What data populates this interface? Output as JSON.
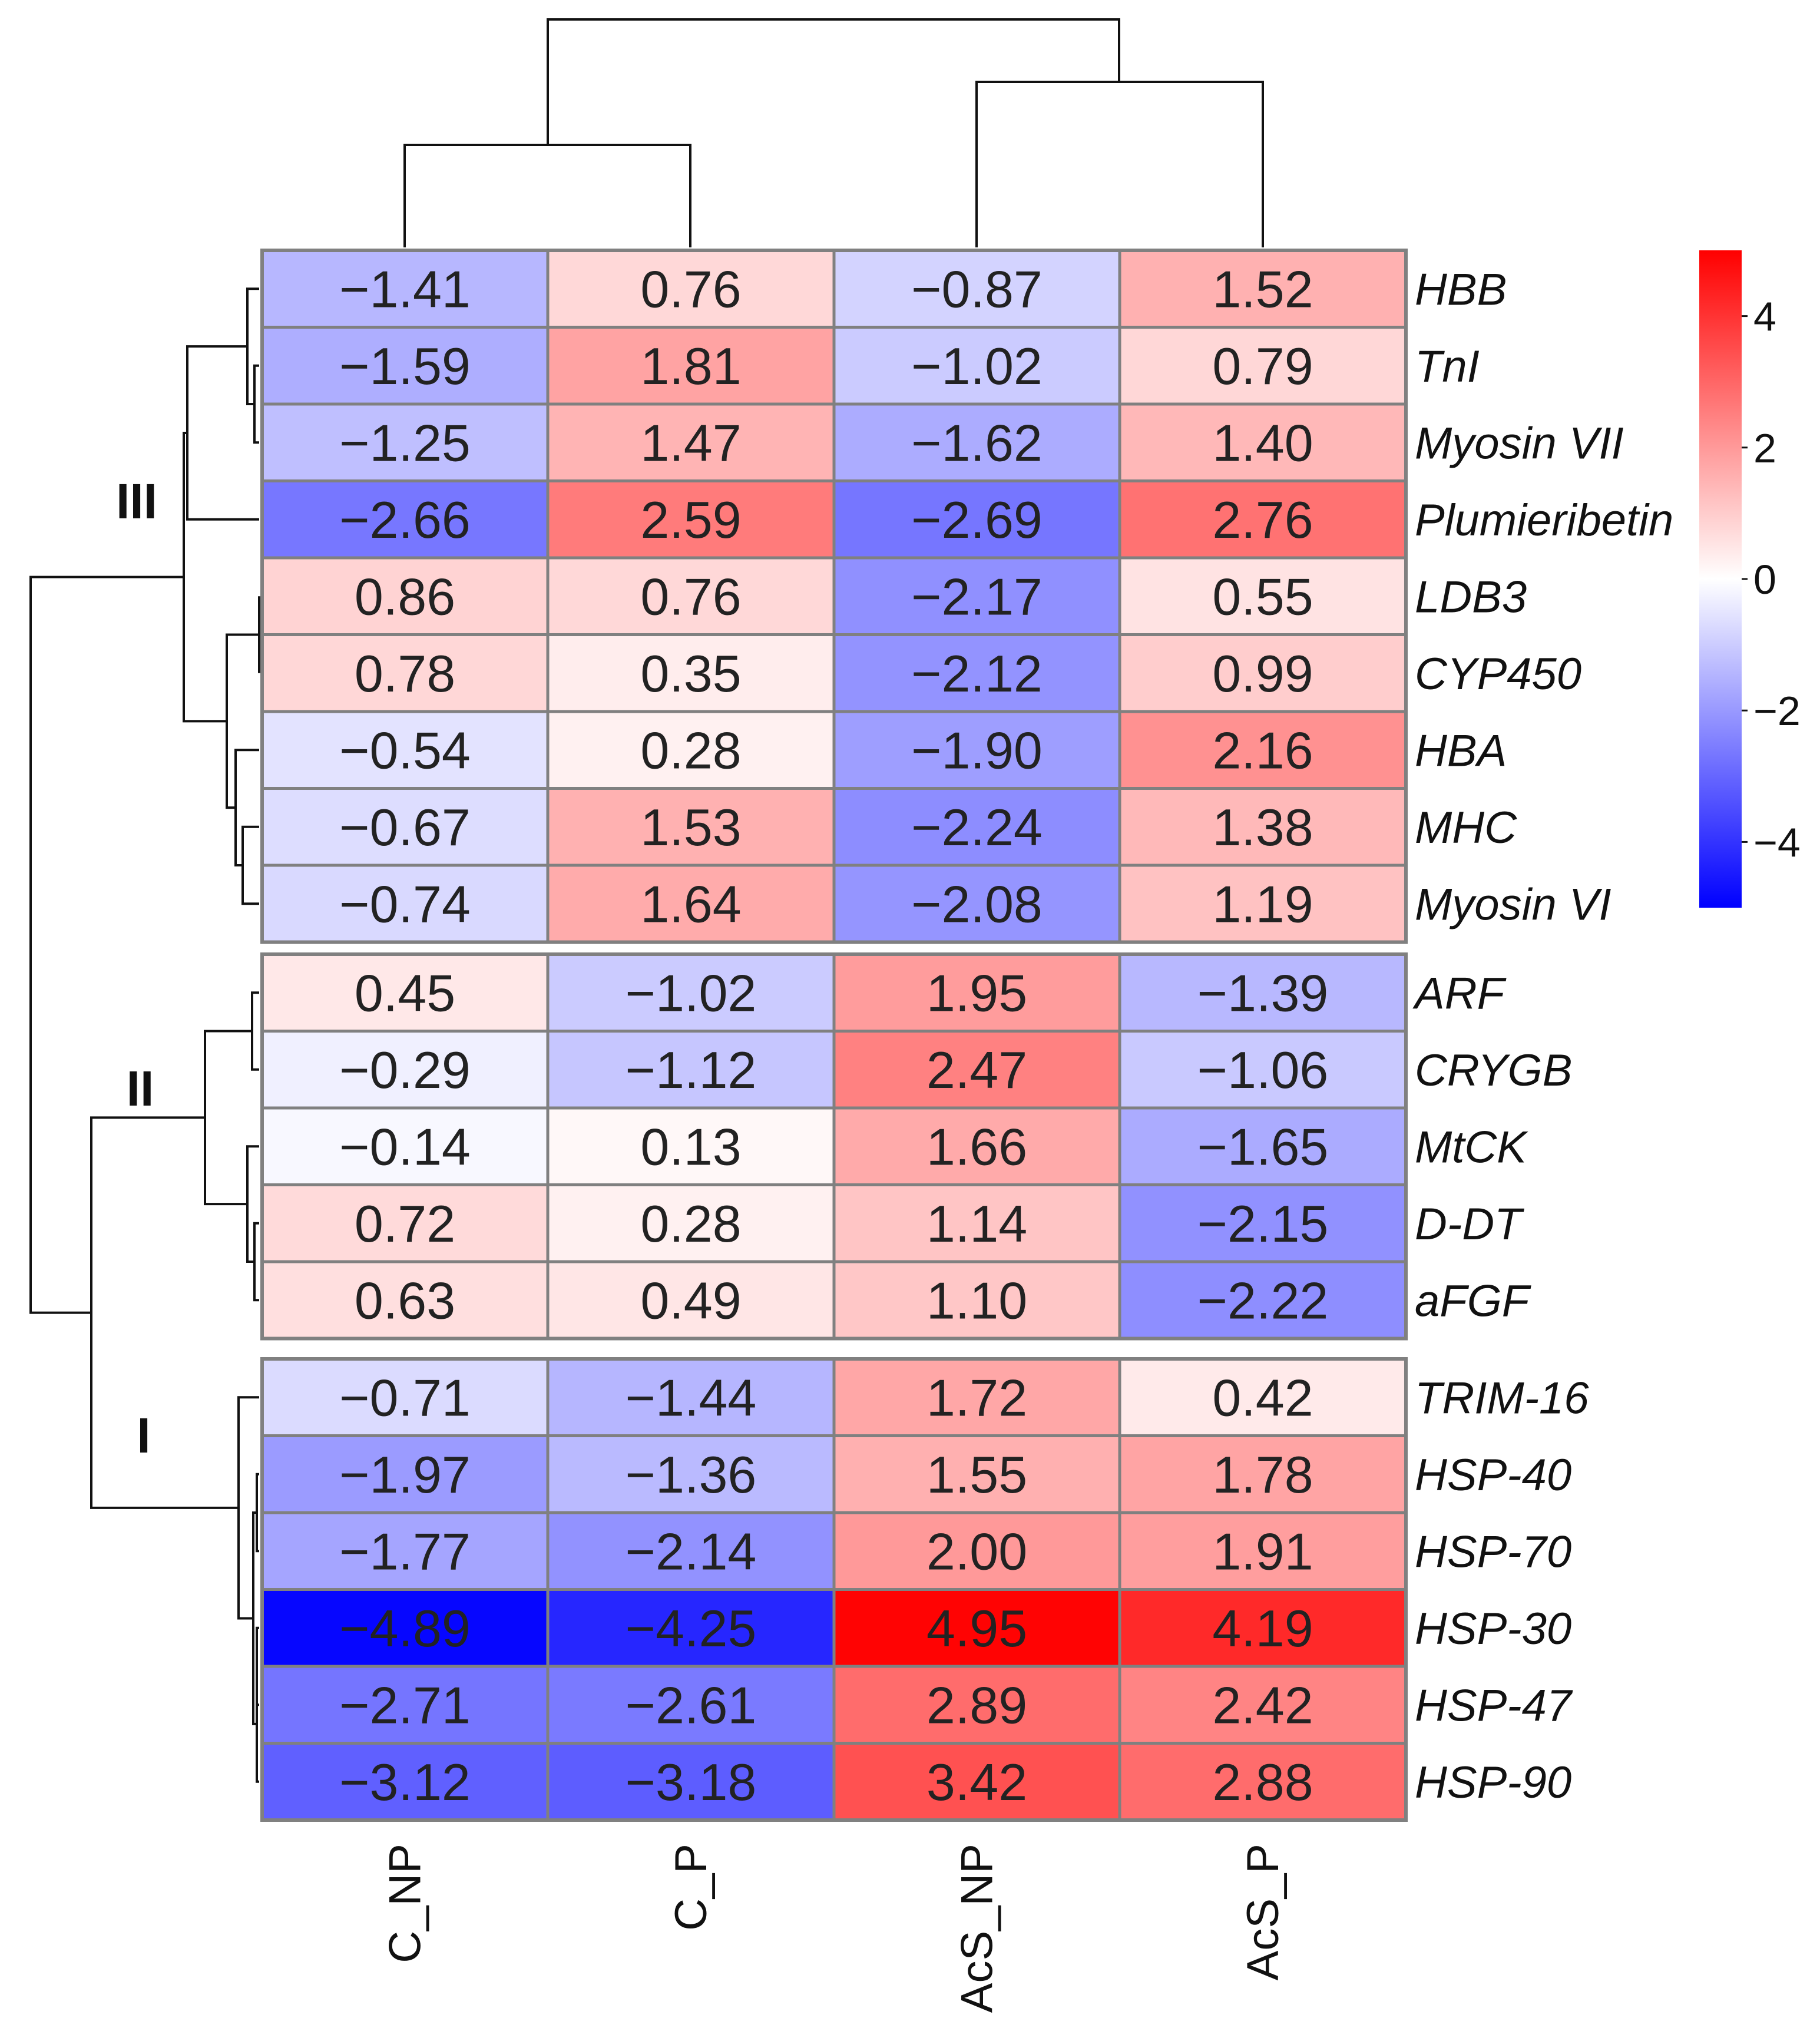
{
  "chart_data": {
    "type": "heatmap",
    "title": "",
    "columns": [
      "C_NP",
      "C_P",
      "AcS_NP",
      "AcS_P"
    ],
    "rows": [
      "HBB",
      "TnI",
      "Myosin VII",
      "Plumieribetin",
      "LDB3",
      "CYP450",
      "HBA",
      "MHC",
      "Myosin VI",
      "ARF",
      "CRYGB",
      "MtCK",
      "D-DT",
      "aFGF",
      "TRIM-16",
      "HSP-40",
      "HSP-70",
      "HSP-30",
      "HSP-47",
      "HSP-90"
    ],
    "values": [
      [
        -1.41,
        0.76,
        -0.87,
        1.52
      ],
      [
        -1.59,
        1.81,
        -1.02,
        0.79
      ],
      [
        -1.25,
        1.47,
        -1.62,
        1.4
      ],
      [
        -2.66,
        2.59,
        -2.69,
        2.76
      ],
      [
        0.86,
        0.76,
        -2.17,
        0.55
      ],
      [
        0.78,
        0.35,
        -2.12,
        0.99
      ],
      [
        -0.54,
        0.28,
        -1.9,
        2.16
      ],
      [
        -0.67,
        1.53,
        -2.24,
        1.38
      ],
      [
        -0.74,
        1.64,
        -2.08,
        1.19
      ],
      [
        0.45,
        -1.02,
        1.95,
        -1.39
      ],
      [
        -0.29,
        -1.12,
        2.47,
        -1.06
      ],
      [
        -0.14,
        0.13,
        1.66,
        -1.65
      ],
      [
        0.72,
        0.28,
        1.14,
        -2.15
      ],
      [
        0.63,
        0.49,
        1.1,
        -2.22
      ],
      [
        -0.71,
        -1.44,
        1.72,
        0.42
      ],
      [
        -1.97,
        -1.36,
        1.55,
        1.78
      ],
      [
        -1.77,
        -2.14,
        2.0,
        1.91
      ],
      [
        -4.89,
        -4.25,
        4.95,
        4.19
      ],
      [
        -2.71,
        -2.61,
        2.89,
        2.42
      ],
      [
        -3.12,
        -3.18,
        3.42,
        2.88
      ]
    ],
    "value_labels": [
      [
        "−1.41",
        "0.76",
        "−0.87",
        "1.52"
      ],
      [
        "−1.59",
        "1.81",
        "−1.02",
        "0.79"
      ],
      [
        "−1.25",
        "1.47",
        "−1.62",
        "1.40"
      ],
      [
        "−2.66",
        "2.59",
        "−2.69",
        "2.76"
      ],
      [
        "0.86",
        "0.76",
        "−2.17",
        "0.55"
      ],
      [
        "0.78",
        "0.35",
        "−2.12",
        "0.99"
      ],
      [
        "−0.54",
        "0.28",
        "−1.90",
        "2.16"
      ],
      [
        "−0.67",
        "1.53",
        "−2.24",
        "1.38"
      ],
      [
        "−0.74",
        "1.64",
        "−2.08",
        "1.19"
      ],
      [
        "0.45",
        "−1.02",
        "1.95",
        "−1.39"
      ],
      [
        "−0.29",
        "−1.12",
        "2.47",
        "−1.06"
      ],
      [
        "−0.14",
        "0.13",
        "1.66",
        "−1.65"
      ],
      [
        "0.72",
        "0.28",
        "1.14",
        "−2.15"
      ],
      [
        "0.63",
        "0.49",
        "1.10",
        "−2.22"
      ],
      [
        "−0.71",
        "−1.44",
        "1.72",
        "0.42"
      ],
      [
        "−1.97",
        "−1.36",
        "1.55",
        "1.78"
      ],
      [
        "−1.77",
        "−2.14",
        "2.00",
        "1.91"
      ],
      [
        "−4.89",
        "−4.25",
        "4.95",
        "4.19"
      ],
      [
        "−2.71",
        "−2.61",
        "2.89",
        "2.42"
      ],
      [
        "−3.12",
        "−3.18",
        "3.42",
        "2.88"
      ]
    ],
    "clusters": [
      {
        "label": "III",
        "rows": [
          0,
          8
        ]
      },
      {
        "label": "II",
        "rows": [
          9,
          13
        ]
      },
      {
        "label": "I",
        "rows": [
          14,
          19
        ]
      }
    ],
    "colorbar": {
      "range": [
        -5,
        5
      ],
      "ticks": [
        4,
        2,
        0,
        -2,
        -4
      ],
      "tick_labels": [
        "4",
        "2",
        "0",
        "−2",
        "−4"
      ],
      "low_color": "#0000ff",
      "mid_color": "#ffffff",
      "high_color": "#ff0000"
    },
    "grid_color": "#808080",
    "column_dendrogram": "((C_NP,C_P),(AcS_NP,AcS_P))",
    "row_dendrogram": "(((HBB,TnI,Myosin VII,Plumieribetin),(LDB3,CYP450,HBA,MHC,Myosin VI)),((ARF,CRYGB,MtCK,D-DT,aFGF),(TRIM-16,HSP-40,HSP-70,HSP-30,HSP-47,HSP-90)))"
  }
}
